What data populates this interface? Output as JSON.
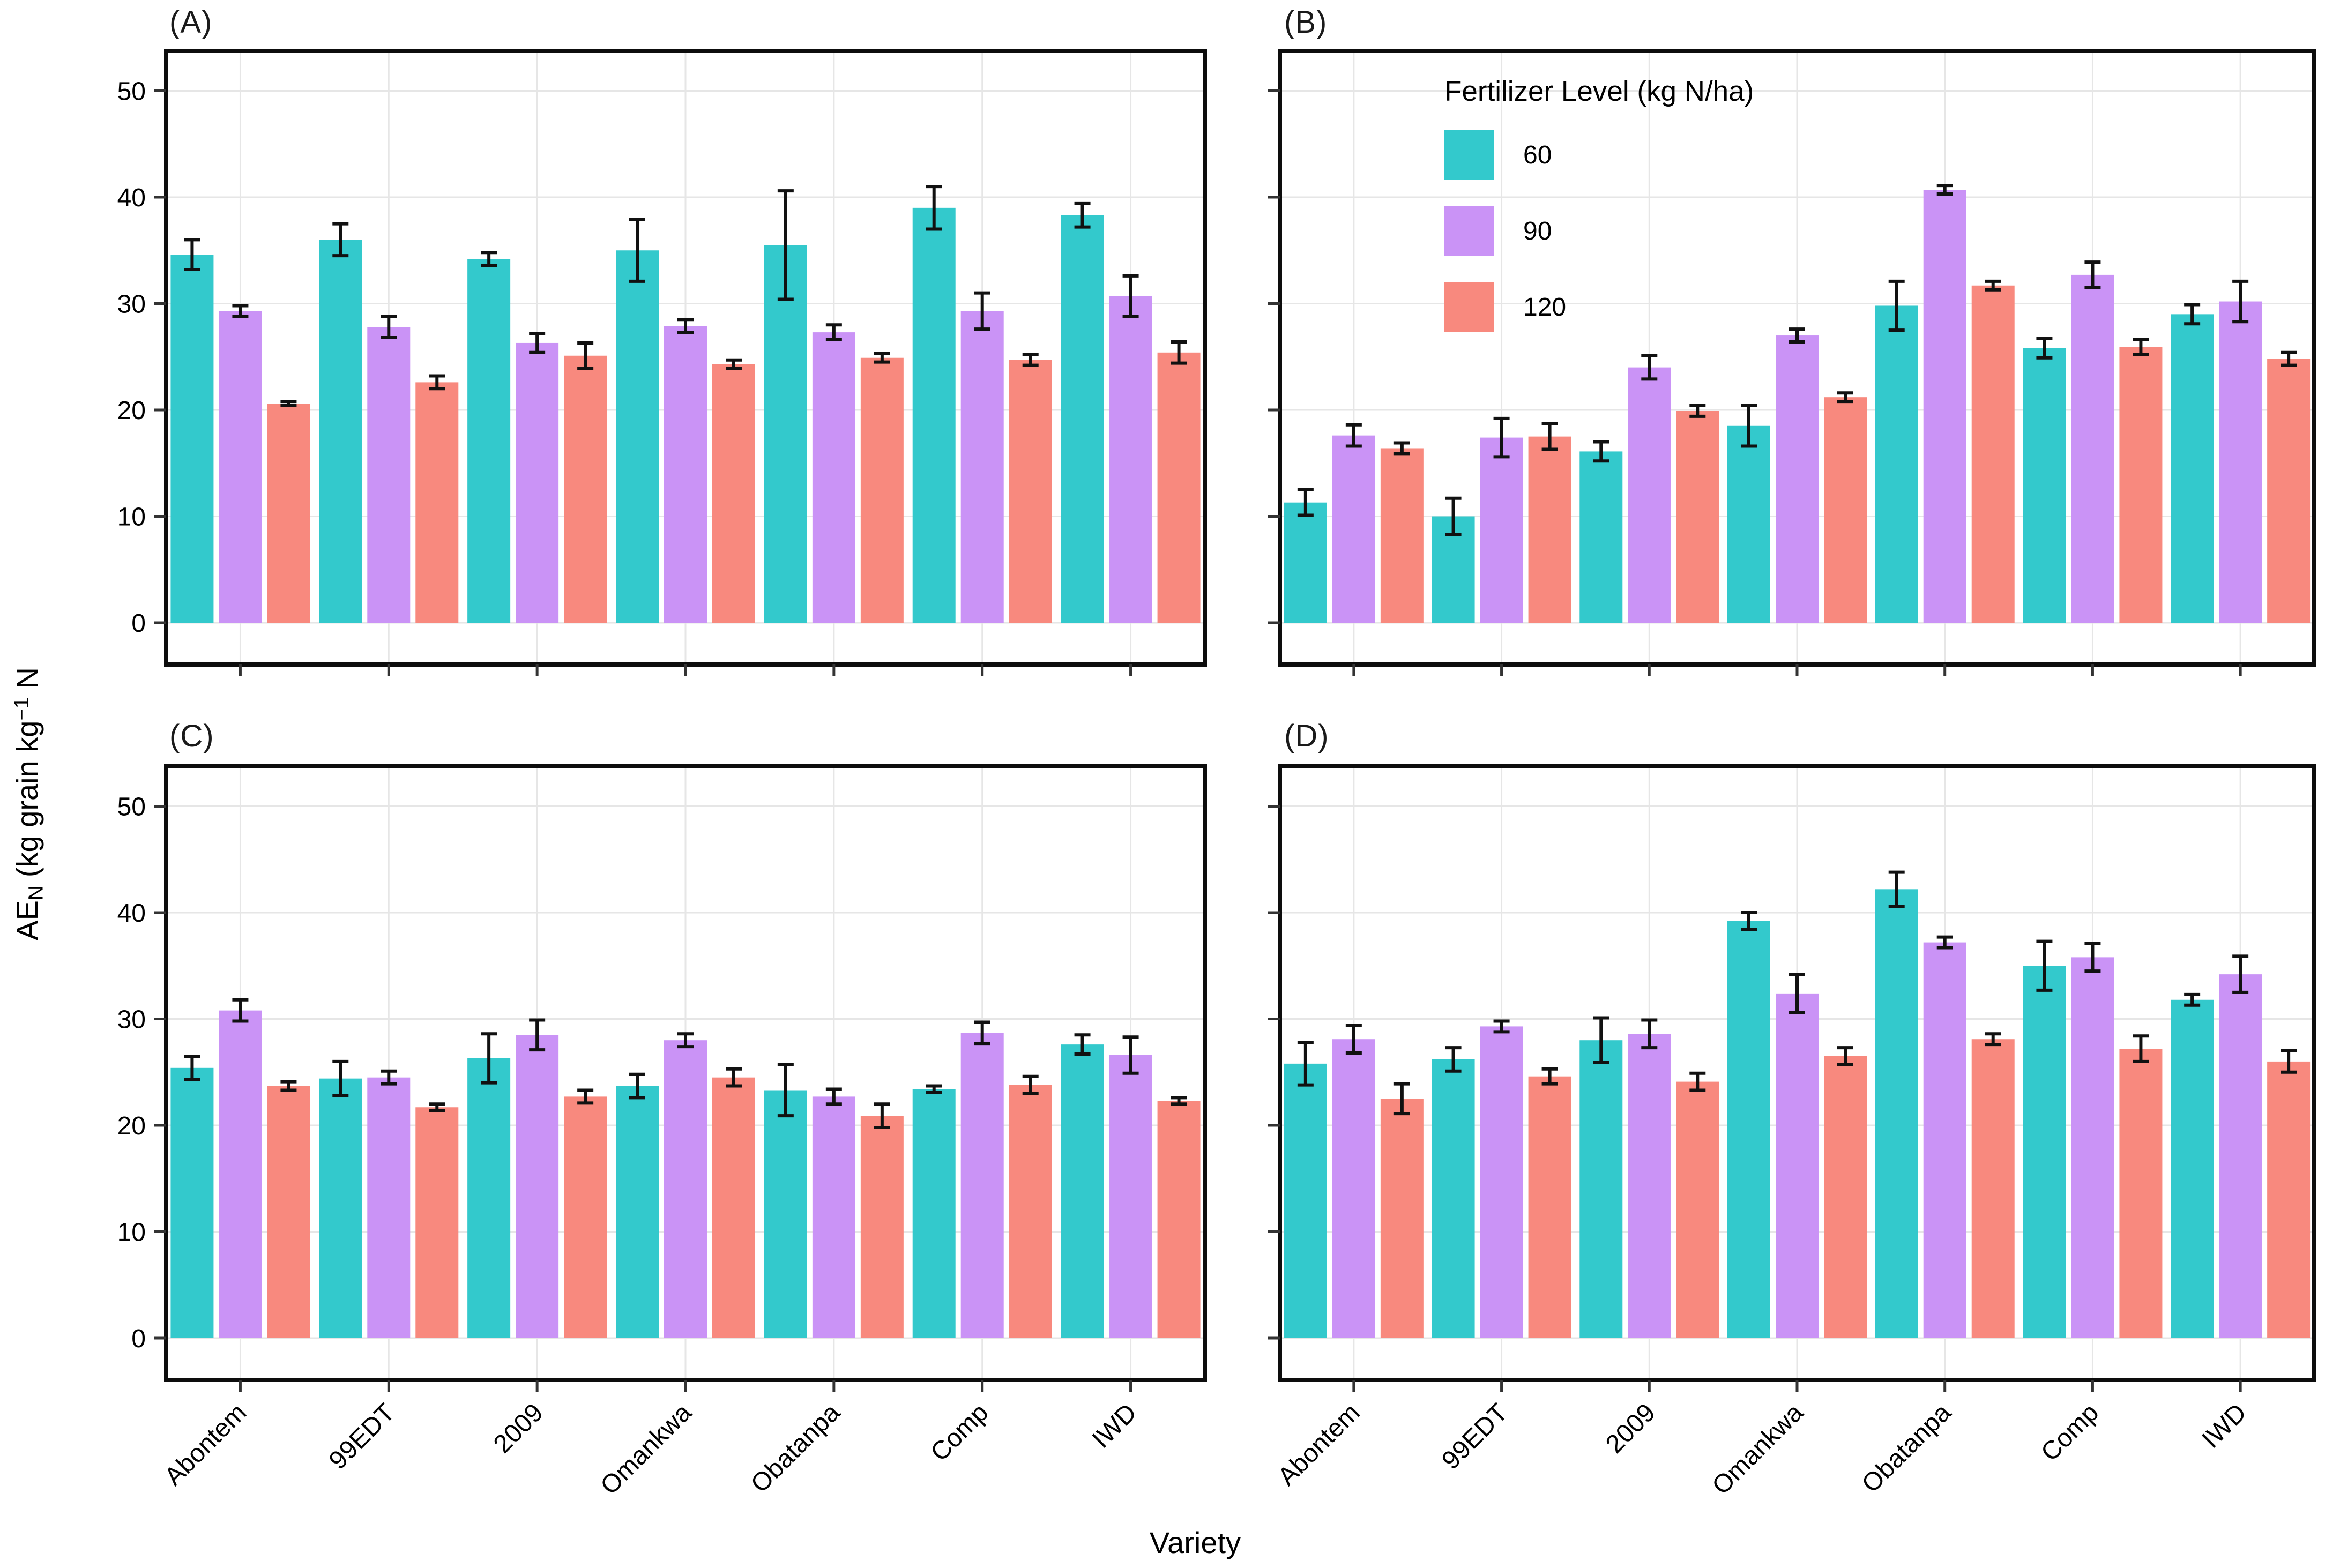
{
  "figure": {
    "y_axis_title": {
      "p1": "AE",
      "sub": "N",
      "p2": " (kg grain kg",
      "sup": "−1",
      "p3": " N"
    },
    "colors": {
      "levels": [
        "#33C9CC",
        "#CA93F6",
        "#F8897E"
      ],
      "grid": "#E6E6E6",
      "frame": "#0d0d0d",
      "error_bar": "#111111",
      "tick": "#333333",
      "text": "#000000"
    }
  },
  "legend": {
    "title": "Fertilizer Level (kg N/ha)",
    "items": [
      {
        "label": "60",
        "color": "#33C9CC"
      },
      {
        "label": "90",
        "color": "#CA93F6"
      },
      {
        "label": "120",
        "color": "#F8897E"
      }
    ]
  },
  "chart_data": {
    "type": "bar",
    "grouping": "grouped-with-error-bars",
    "categories": [
      "Abontem",
      "99EDT",
      "2009",
      "Omankwa",
      "Obatanpa",
      "Comp",
      "IWD"
    ],
    "levels": [
      "60",
      "90",
      "120"
    ],
    "xlabel": "Variety",
    "ylabel": "AE_N (kg grain kg⁻¹ N",
    "ylim": [
      0,
      50
    ],
    "yticks": [
      0,
      10,
      20,
      30,
      40,
      50
    ],
    "grid": true,
    "legend_position": "inside-top-of-panel-B",
    "panels": [
      {
        "label": "(A)",
        "series": [
          {
            "name": "60",
            "values": [
              34.6,
              36.0,
              34.2,
              35.0,
              35.5,
              39.0,
              38.3
            ],
            "errors": [
              1.4,
              1.5,
              0.6,
              2.9,
              5.1,
              2.0,
              1.1
            ]
          },
          {
            "name": "90",
            "values": [
              29.3,
              27.8,
              26.3,
              27.9,
              27.3,
              29.3,
              30.7
            ],
            "errors": [
              0.5,
              1.0,
              0.9,
              0.6,
              0.7,
              1.7,
              1.9
            ]
          },
          {
            "name": "120",
            "values": [
              20.6,
              22.6,
              25.1,
              24.3,
              24.9,
              24.7,
              25.4
            ],
            "errors": [
              0.2,
              0.6,
              1.2,
              0.4,
              0.4,
              0.5,
              1.0
            ]
          }
        ]
      },
      {
        "label": "(B)",
        "series": [
          {
            "name": "60",
            "values": [
              11.3,
              10.0,
              16.1,
              18.5,
              29.8,
              25.8,
              29.0
            ],
            "errors": [
              1.2,
              1.7,
              0.9,
              1.9,
              2.3,
              0.9,
              0.9
            ]
          },
          {
            "name": "90",
            "values": [
              17.6,
              17.4,
              24.0,
              27.0,
              40.7,
              32.7,
              30.2
            ],
            "errors": [
              1.0,
              1.8,
              1.1,
              0.6,
              0.4,
              1.2,
              1.9
            ]
          },
          {
            "name": "120",
            "values": [
              16.4,
              17.5,
              19.9,
              21.2,
              31.7,
              25.9,
              24.8
            ],
            "errors": [
              0.5,
              1.2,
              0.5,
              0.4,
              0.4,
              0.7,
              0.6
            ]
          }
        ]
      },
      {
        "label": "(C)",
        "series": [
          {
            "name": "60",
            "values": [
              25.4,
              24.4,
              26.3,
              23.7,
              23.3,
              23.4,
              27.6
            ],
            "errors": [
              1.1,
              1.6,
              2.3,
              1.1,
              2.4,
              0.3,
              0.9
            ]
          },
          {
            "name": "90",
            "values": [
              30.8,
              24.5,
              28.5,
              28.0,
              22.7,
              28.7,
              26.6
            ],
            "errors": [
              1.0,
              0.6,
              1.4,
              0.6,
              0.7,
              1.0,
              1.7
            ]
          },
          {
            "name": "120",
            "values": [
              23.7,
              21.7,
              22.7,
              24.5,
              20.9,
              23.8,
              22.3
            ],
            "errors": [
              0.4,
              0.3,
              0.6,
              0.8,
              1.1,
              0.8,
              0.3
            ]
          }
        ]
      },
      {
        "label": "(D)",
        "series": [
          {
            "name": "60",
            "values": [
              25.8,
              26.2,
              28.0,
              39.2,
              42.2,
              35.0,
              31.8
            ],
            "errors": [
              2.0,
              1.1,
              2.1,
              0.8,
              1.6,
              2.3,
              0.5
            ]
          },
          {
            "name": "90",
            "values": [
              28.1,
              29.3,
              28.6,
              32.4,
              37.2,
              35.8,
              34.2
            ],
            "errors": [
              1.3,
              0.5,
              1.3,
              1.8,
              0.5,
              1.3,
              1.7
            ]
          },
          {
            "name": "120",
            "values": [
              22.5,
              24.6,
              24.1,
              26.5,
              28.1,
              27.2,
              26.0
            ],
            "errors": [
              1.4,
              0.7,
              0.8,
              0.8,
              0.5,
              1.2,
              1.0
            ]
          }
        ]
      }
    ]
  }
}
